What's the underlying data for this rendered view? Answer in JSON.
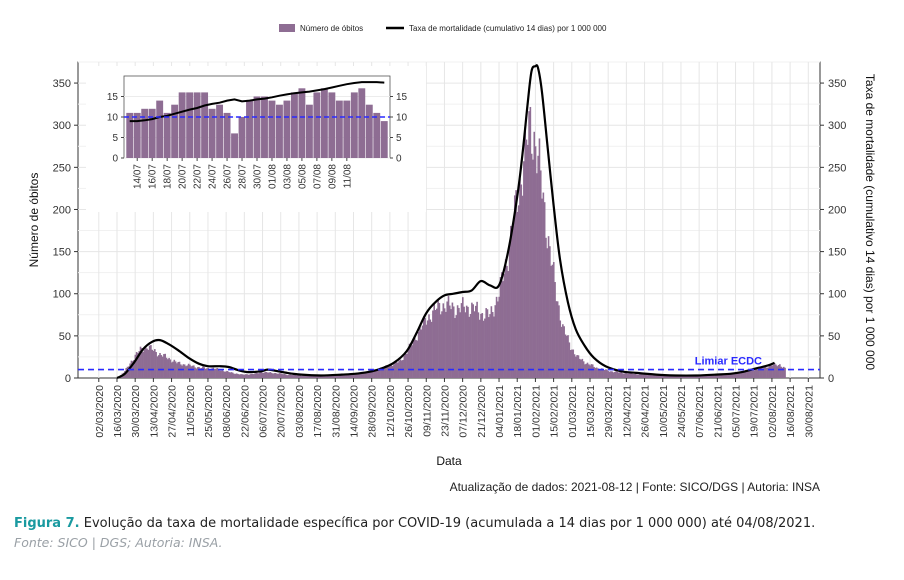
{
  "chart_data": {
    "type": "bar",
    "legend": {
      "position": "top",
      "items": [
        {
          "label": "Número de óbitos",
          "kind": "bar",
          "color": "#8e6d93"
        },
        {
          "label": "Taxa de mortalidade (cumulativo 14 dias) por 1 000 000",
          "kind": "line",
          "color": "#000000"
        }
      ]
    },
    "xlabel": "Data",
    "ylabel_left": "Número de óbitos",
    "ylabel_right": "Taxa de mortalidade (cumulativo 14 dias) por 1 000 000",
    "ylim_left": [
      0,
      375
    ],
    "ylim_right": [
      0,
      375
    ],
    "yticks": [
      0,
      50,
      100,
      150,
      200,
      250,
      300,
      350
    ],
    "x_start": "2020-02-15",
    "x_end": "2021-09-08",
    "xtick_labels": [
      "02/03/2020",
      "16/03/2020",
      "30/03/2020",
      "13/04/2020",
      "27/04/2020",
      "11/05/2020",
      "25/05/2020",
      "08/06/2020",
      "22/06/2020",
      "06/07/2020",
      "20/07/2020",
      "03/08/2020",
      "17/08/2020",
      "31/08/2020",
      "14/09/2020",
      "28/09/2020",
      "12/10/2020",
      "26/10/2020",
      "09/11/2020",
      "23/11/2020",
      "07/12/2020",
      "21/12/2020",
      "04/01/2021",
      "18/01/2021",
      "01/02/2021",
      "15/02/2021",
      "01/03/2021",
      "15/03/2021",
      "29/03/2021",
      "12/04/2021",
      "26/04/2021",
      "10/05/2021",
      "24/05/2021",
      "07/06/2021",
      "21/06/2021",
      "05/07/2021",
      "19/07/2021",
      "02/08/2021",
      "16/08/2021",
      "30/08/2021"
    ],
    "deaths_profile": [
      [
        "2020-03-16",
        0
      ],
      [
        "2020-03-18",
        2
      ],
      [
        "2020-03-22",
        8
      ],
      [
        "2020-03-27",
        20
      ],
      [
        "2020-04-01",
        30
      ],
      [
        "2020-04-04",
        35
      ],
      [
        "2020-04-08",
        37
      ],
      [
        "2020-04-13",
        33
      ],
      [
        "2020-04-18",
        28
      ],
      [
        "2020-04-24",
        24
      ],
      [
        "2020-05-01",
        18
      ],
      [
        "2020-05-10",
        15
      ],
      [
        "2020-05-20",
        12
      ],
      [
        "2020-05-31",
        11
      ],
      [
        "2020-06-10",
        7
      ],
      [
        "2020-06-20",
        4
      ],
      [
        "2020-06-30",
        5
      ],
      [
        "2020-07-05",
        7
      ],
      [
        "2020-07-15",
        6
      ],
      [
        "2020-07-25",
        4
      ],
      [
        "2020-08-05",
        3
      ],
      [
        "2020-08-20",
        2
      ],
      [
        "2020-09-01",
        3
      ],
      [
        "2020-09-15",
        5
      ],
      [
        "2020-09-28",
        8
      ],
      [
        "2020-10-10",
        14
      ],
      [
        "2020-10-20",
        20
      ],
      [
        "2020-10-28",
        38
      ],
      [
        "2020-11-05",
        60
      ],
      [
        "2020-11-12",
        75
      ],
      [
        "2020-11-18",
        84
      ],
      [
        "2020-11-24",
        87
      ],
      [
        "2020-12-01",
        82
      ],
      [
        "2020-12-08",
        84
      ],
      [
        "2020-12-15",
        83
      ],
      [
        "2020-12-22",
        76
      ],
      [
        "2020-12-28",
        74
      ],
      [
        "2021-01-04",
        100
      ],
      [
        "2021-01-10",
        140
      ],
      [
        "2021-01-15",
        185
      ],
      [
        "2021-01-20",
        230
      ],
      [
        "2021-01-25",
        275
      ],
      [
        "2021-01-28",
        300
      ],
      [
        "2021-01-31",
        286
      ],
      [
        "2021-02-04",
        248
      ],
      [
        "2021-02-08",
        200
      ],
      [
        "2021-02-12",
        150
      ],
      [
        "2021-02-17",
        100
      ],
      [
        "2021-02-22",
        60
      ],
      [
        "2021-02-28",
        38
      ],
      [
        "2021-03-05",
        25
      ],
      [
        "2021-03-12",
        18
      ],
      [
        "2021-03-20",
        12
      ],
      [
        "2021-03-31",
        8
      ],
      [
        "2021-04-10",
        6
      ],
      [
        "2021-04-25",
        4
      ],
      [
        "2021-05-10",
        3
      ],
      [
        "2021-05-25",
        2
      ],
      [
        "2021-06-10",
        3
      ],
      [
        "2021-06-25",
        4
      ],
      [
        "2021-07-05",
        6
      ],
      [
        "2021-07-15",
        9
      ],
      [
        "2021-07-25",
        12
      ],
      [
        "2021-08-01",
        15
      ],
      [
        "2021-08-08",
        16
      ],
      [
        "2021-08-12",
        11
      ]
    ],
    "rate_line": [
      [
        "2020-03-16",
        0
      ],
      [
        "2020-03-22",
        5
      ],
      [
        "2020-03-29",
        18
      ],
      [
        "2020-04-05",
        34
      ],
      [
        "2020-04-12",
        43
      ],
      [
        "2020-04-18",
        45
      ],
      [
        "2020-04-25",
        40
      ],
      [
        "2020-05-02",
        33
      ],
      [
        "2020-05-10",
        24
      ],
      [
        "2020-05-18",
        17
      ],
      [
        "2020-05-25",
        14
      ],
      [
        "2020-06-03",
        14
      ],
      [
        "2020-06-10",
        13
      ],
      [
        "2020-06-18",
        9
      ],
      [
        "2020-06-25",
        7
      ],
      [
        "2020-07-05",
        8
      ],
      [
        "2020-07-10",
        10
      ],
      [
        "2020-07-18",
        8
      ],
      [
        "2020-07-25",
        6
      ],
      [
        "2020-08-05",
        4
      ],
      [
        "2020-08-20",
        3
      ],
      [
        "2020-09-05",
        4
      ],
      [
        "2020-09-15",
        5
      ],
      [
        "2020-09-25",
        7
      ],
      [
        "2020-10-05",
        11
      ],
      [
        "2020-10-15",
        18
      ],
      [
        "2020-10-25",
        32
      ],
      [
        "2020-11-02",
        55
      ],
      [
        "2020-11-09",
        77
      ],
      [
        "2020-11-16",
        90
      ],
      [
        "2020-11-23",
        98
      ],
      [
        "2020-11-30",
        100
      ],
      [
        "2020-12-07",
        102
      ],
      [
        "2020-12-14",
        104
      ],
      [
        "2020-12-21",
        115
      ],
      [
        "2020-12-28",
        110
      ],
      [
        "2021-01-04",
        110
      ],
      [
        "2021-01-11",
        150
      ],
      [
        "2021-01-18",
        215
      ],
      [
        "2021-01-22",
        265
      ],
      [
        "2021-01-26",
        325
      ],
      [
        "2021-01-29",
        364
      ],
      [
        "2021-02-01",
        370
      ],
      [
        "2021-02-03",
        368
      ],
      [
        "2021-02-06",
        340
      ],
      [
        "2021-02-10",
        280
      ],
      [
        "2021-02-15",
        205
      ],
      [
        "2021-02-20",
        140
      ],
      [
        "2021-02-26",
        90
      ],
      [
        "2021-03-04",
        58
      ],
      [
        "2021-03-11",
        38
      ],
      [
        "2021-03-18",
        24
      ],
      [
        "2021-03-27",
        14
      ],
      [
        "2021-04-08",
        8
      ],
      [
        "2021-04-20",
        6
      ],
      [
        "2021-05-05",
        4
      ],
      [
        "2021-05-20",
        3
      ],
      [
        "2021-06-05",
        3
      ],
      [
        "2021-06-20",
        4
      ],
      [
        "2021-07-01",
        5
      ],
      [
        "2021-07-10",
        7
      ],
      [
        "2021-07-20",
        11
      ],
      [
        "2021-07-30",
        15
      ],
      [
        "2021-08-04",
        18
      ]
    ],
    "threshold": {
      "value": 10,
      "label": "Limiar ECDC",
      "color": "#2a2aff"
    },
    "inset": {
      "ylim": [
        0,
        20
      ],
      "yticks": [
        0,
        5,
        10,
        15
      ],
      "xtick_labels": [
        "14/07",
        "16/07",
        "18/07",
        "20/07",
        "22/07",
        "24/07",
        "26/07",
        "28/07",
        "30/07",
        "01/08",
        "03/08",
        "05/08",
        "07/08",
        "09/08",
        "11/08"
      ],
      "bar_values": [
        11,
        11,
        12,
        12,
        14,
        11,
        13,
        16,
        16,
        16,
        16,
        12,
        13,
        11,
        6,
        10,
        14,
        15,
        15,
        14,
        13,
        14,
        16,
        17,
        13,
        16,
        17,
        16,
        14,
        14,
        16,
        17,
        13,
        11,
        9
      ],
      "line_values": [
        9,
        9,
        9.2,
        9.5,
        10,
        10.3,
        10.8,
        11.3,
        11.8,
        12.2,
        12.8,
        13.2,
        13.5,
        14,
        14.3,
        13.8,
        14,
        14.3,
        14.5,
        14.8,
        15.2,
        15.5,
        15.8,
        16,
        16.2,
        16.5,
        16.8,
        17.2,
        17.6,
        18,
        18.3,
        18.5,
        18.5,
        18.5,
        18.4
      ]
    },
    "footnote": "Atualização de dados: 2021-08-12 | Fonte: SICO/DGS | Autoria: INSA"
  },
  "caption": {
    "label": "Figura 7.",
    "text": " Evolução da taxa de mortalidade específica por COVID-19 (acumulada a 14 dias por 1 000 000) até 04/08/2021.",
    "source": "Fonte: SICO | DGS; Autoria: INSA."
  }
}
